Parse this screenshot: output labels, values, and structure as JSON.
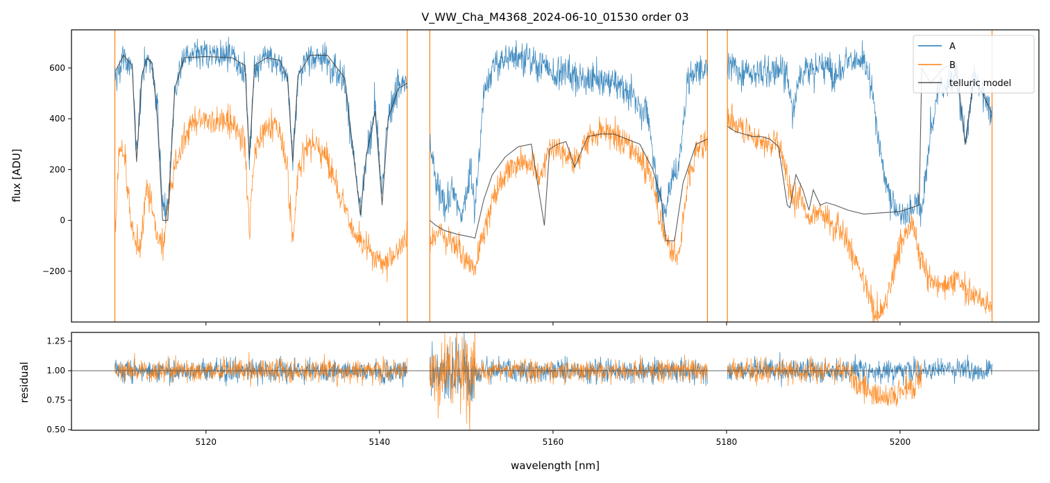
{
  "chart_data": {
    "type": "line",
    "title": "V_WW_Cha_M4368_2024-06-10_01530  order 03",
    "xlabel": "wavelength [nm]",
    "xlim": [
      5104.5,
      5216
    ],
    "x_ticks": [
      5120,
      5140,
      5160,
      5180,
      5200
    ],
    "top_panel": {
      "ylabel": "flux [ADU]",
      "ylim": [
        -400,
        750
      ],
      "y_ticks": [
        -200,
        0,
        200,
        400,
        600
      ],
      "segments": [
        {
          "x": [
            5109.5,
            5143.2
          ],
          "A_points": [
            [
              5109.6,
              560
            ],
            [
              5110.5,
              640
            ],
            [
              5111.5,
              600
            ],
            [
              5112.0,
              250
            ],
            [
              5112.6,
              560
            ],
            [
              5113.2,
              630
            ],
            [
              5113.8,
              610
            ],
            [
              5114.4,
              450
            ],
            [
              5115.0,
              60
            ],
            [
              5115.6,
              50
            ],
            [
              5116.4,
              500
            ],
            [
              5117.5,
              650
            ],
            [
              5120,
              650
            ],
            [
              5123,
              640
            ],
            [
              5124.5,
              600
            ],
            [
              5125.0,
              240
            ],
            [
              5125.6,
              600
            ],
            [
              5127,
              640
            ],
            [
              5128.5,
              620
            ],
            [
              5129.4,
              560
            ],
            [
              5130.0,
              240
            ],
            [
              5130.6,
              560
            ],
            [
              5132,
              640
            ],
            [
              5134,
              640
            ],
            [
              5136,
              550
            ],
            [
              5137.2,
              200
            ],
            [
              5137.8,
              30
            ],
            [
              5138.5,
              250
            ],
            [
              5139.5,
              460
            ],
            [
              5140.3,
              100
            ],
            [
              5141,
              420
            ],
            [
              5142.2,
              530
            ],
            [
              5143.2,
              540
            ]
          ],
          "B_points": [
            [
              5109.6,
              -20
            ],
            [
              5110.0,
              280
            ],
            [
              5110.6,
              260
            ],
            [
              5111.3,
              20
            ],
            [
              5111.8,
              -90
            ],
            [
              5112.5,
              -80
            ],
            [
              5113.2,
              140
            ],
            [
              5113.8,
              50
            ],
            [
              5114.5,
              -80
            ],
            [
              5115.0,
              -110
            ],
            [
              5116.0,
              150
            ],
            [
              5117.0,
              280
            ],
            [
              5118.5,
              380
            ],
            [
              5121,
              400
            ],
            [
              5123,
              390
            ],
            [
              5124.5,
              300
            ],
            [
              5125.0,
              -40
            ],
            [
              5125.6,
              280
            ],
            [
              5127,
              380
            ],
            [
              5128.5,
              350
            ],
            [
              5129.4,
              200
            ],
            [
              5130.0,
              -90
            ],
            [
              5130.6,
              200
            ],
            [
              5132,
              320
            ],
            [
              5134,
              240
            ],
            [
              5135.5,
              100
            ],
            [
              5137.0,
              -50
            ],
            [
              5138.0,
              -100
            ],
            [
              5139.5,
              -150
            ],
            [
              5140.5,
              -170
            ],
            [
              5142,
              -120
            ],
            [
              5143.2,
              -60
            ]
          ],
          "model_points": [
            [
              5109.6,
              590
            ],
            [
              5110.5,
              650
            ],
            [
              5111.5,
              610
            ],
            [
              5112.0,
              230
            ],
            [
              5112.6,
              570
            ],
            [
              5113.2,
              640
            ],
            [
              5113.8,
              620
            ],
            [
              5114.4,
              400
            ],
            [
              5115.0,
              0
            ],
            [
              5115.6,
              0
            ],
            [
              5116.4,
              520
            ],
            [
              5117.5,
              640
            ],
            [
              5120,
              645
            ],
            [
              5123,
              640
            ],
            [
              5124.5,
              610
            ],
            [
              5125.0,
              240
            ],
            [
              5125.6,
              610
            ],
            [
              5127,
              640
            ],
            [
              5128.5,
              630
            ],
            [
              5129.4,
              560
            ],
            [
              5130.0,
              230
            ],
            [
              5130.6,
              570
            ],
            [
              5132,
              650
            ],
            [
              5134,
              650
            ],
            [
              5136,
              560
            ],
            [
              5137.2,
              200
            ],
            [
              5137.8,
              20
            ],
            [
              5138.5,
              260
            ],
            [
              5139.5,
              430
            ],
            [
              5140.3,
              60
            ],
            [
              5141,
              400
            ],
            [
              5142.2,
              520
            ],
            [
              5143.2,
              540
            ]
          ]
        },
        {
          "x": [
            5145.8,
            5177.8
          ],
          "A_points": [
            [
              5145.8,
              300
            ],
            [
              5146.5,
              150
            ],
            [
              5147.5,
              60
            ],
            [
              5148.5,
              120
            ],
            [
              5149.5,
              20
            ],
            [
              5150.5,
              200
            ],
            [
              5151.0,
              20
            ],
            [
              5152,
              500
            ],
            [
              5153,
              600
            ],
            [
              5154.5,
              640
            ],
            [
              5156,
              650
            ],
            [
              5157.5,
              620
            ],
            [
              5159,
              610
            ],
            [
              5160,
              580
            ],
            [
              5161,
              600
            ],
            [
              5162,
              580
            ],
            [
              5163,
              560
            ],
            [
              5165,
              560
            ],
            [
              5167,
              540
            ],
            [
              5169,
              500
            ],
            [
              5171,
              400
            ],
            [
              5172,
              150
            ],
            [
              5172.8,
              20
            ],
            [
              5173.5,
              150
            ],
            [
              5174.5,
              200
            ],
            [
              5175.5,
              550
            ],
            [
              5176.5,
              580
            ],
            [
              5177.8,
              610
            ]
          ],
          "B_points": [
            [
              5145.8,
              -100
            ],
            [
              5147,
              -50
            ],
            [
              5148.5,
              -100
            ],
            [
              5150,
              -150
            ],
            [
              5151,
              -180
            ],
            [
              5152,
              -60
            ],
            [
              5153,
              80
            ],
            [
              5154.5,
              180
            ],
            [
              5156,
              240
            ],
            [
              5157.5,
              220
            ],
            [
              5158.5,
              170
            ],
            [
              5159.5,
              280
            ],
            [
              5160.5,
              280
            ],
            [
              5161.5,
              260
            ],
            [
              5162.5,
              220
            ],
            [
              5164,
              320
            ],
            [
              5165.5,
              340
            ],
            [
              5167,
              340
            ],
            [
              5168.5,
              300
            ],
            [
              5170,
              250
            ],
            [
              5171.5,
              150
            ],
            [
              5172.5,
              -20
            ],
            [
              5173.5,
              -110
            ],
            [
              5174.5,
              -140
            ],
            [
              5175.5,
              150
            ],
            [
              5176.5,
              280
            ],
            [
              5177.8,
              310
            ]
          ],
          "model_points": [
            [
              5145.8,
              0
            ],
            [
              5146.5,
              -20
            ],
            [
              5147.5,
              -40
            ],
            [
              5149,
              -55
            ],
            [
              5150.5,
              -65
            ],
            [
              5151.0,
              -70
            ],
            [
              5152,
              80
            ],
            [
              5153,
              180
            ],
            [
              5154.5,
              250
            ],
            [
              5156,
              290
            ],
            [
              5157.5,
              300
            ],
            [
              5159,
              -20
            ],
            [
              5159.6,
              280
            ],
            [
              5160.5,
              300
            ],
            [
              5161.5,
              310
            ],
            [
              5162.5,
              210
            ],
            [
              5164,
              330
            ],
            [
              5165.5,
              340
            ],
            [
              5167,
              340
            ],
            [
              5168.5,
              320
            ],
            [
              5170,
              300
            ],
            [
              5171.5,
              200
            ],
            [
              5172.5,
              80
            ],
            [
              5173,
              -80
            ],
            [
              5174,
              -80
            ],
            [
              5175,
              150
            ],
            [
              5176.5,
              300
            ],
            [
              5177.8,
              320
            ]
          ]
        },
        {
          "x": [
            5180.1,
            5210.6
          ],
          "A_points": [
            [
              5180.1,
              600
            ],
            [
              5182,
              590
            ],
            [
              5184,
              580
            ],
            [
              5186,
              590
            ],
            [
              5187.2,
              560
            ],
            [
              5187.6,
              420
            ],
            [
              5188.5,
              590
            ],
            [
              5190,
              600
            ],
            [
              5191.5,
              610
            ],
            [
              5192.5,
              560
            ],
            [
              5193.5,
              620
            ],
            [
              5195,
              630
            ],
            [
              5196,
              610
            ],
            [
              5197,
              450
            ],
            [
              5198,
              200
            ],
            [
              5199,
              80
            ],
            [
              5200,
              30
            ],
            [
              5200.8,
              20
            ],
            [
              5201.5,
              50
            ],
            [
              5202,
              80
            ],
            [
              5202.5,
              20
            ],
            [
              5203.5,
              350
            ],
            [
              5204.5,
              520
            ],
            [
              5205.5,
              550
            ],
            [
              5206.5,
              570
            ],
            [
              5207.5,
              300
            ],
            [
              5208.5,
              560
            ],
            [
              5209.5,
              500
            ],
            [
              5210.6,
              420
            ]
          ],
          "B_points": [
            [
              5180.1,
              400
            ],
            [
              5181.5,
              370
            ],
            [
              5183,
              330
            ],
            [
              5184.5,
              300
            ],
            [
              5186,
              320
            ],
            [
              5187.2,
              130
            ],
            [
              5187.8,
              70
            ],
            [
              5188.5,
              100
            ],
            [
              5189.5,
              0
            ],
            [
              5190.5,
              40
            ],
            [
              5191.5,
              10
            ],
            [
              5193,
              -20
            ],
            [
              5194.5,
              -120
            ],
            [
              5195.5,
              -220
            ],
            [
              5196.5,
              -300
            ],
            [
              5197.5,
              -380
            ],
            [
              5198.5,
              -320
            ],
            [
              5199.5,
              -150
            ],
            [
              5200.5,
              -60
            ],
            [
              5201.5,
              -20
            ],
            [
              5202.5,
              -160
            ],
            [
              5203.5,
              -240
            ],
            [
              5205,
              -260
            ],
            [
              5206.5,
              -230
            ],
            [
              5208,
              -280
            ],
            [
              5209.5,
              -310
            ],
            [
              5210.6,
              -330
            ]
          ],
          "model_points": [
            [
              5180.1,
              370
            ],
            [
              5181,
              350
            ],
            [
              5182,
              340
            ],
            [
              5183,
              330
            ],
            [
              5184,
              330
            ],
            [
              5185,
              320
            ],
            [
              5186,
              290
            ],
            [
              5187.0,
              60
            ],
            [
              5187.3,
              50
            ],
            [
              5188,
              180
            ],
            [
              5188.8,
              120
            ],
            [
              5189.5,
              40
            ],
            [
              5190,
              120
            ],
            [
              5190.8,
              60
            ],
            [
              5191.5,
              70
            ],
            [
              5192.5,
              60
            ],
            [
              5194,
              40
            ],
            [
              5195.8,
              25
            ],
            [
              5198,
              30
            ],
            [
              5200,
              35
            ],
            [
              5202.2,
              60
            ],
            [
              5202.5,
              600
            ],
            [
              5203.5,
              540
            ],
            [
              5205,
              600
            ],
            [
              5206.5,
              620
            ],
            [
              5207.5,
              300
            ],
            [
              5208.5,
              560
            ],
            [
              5209.5,
              500
            ],
            [
              5210.6,
              420
            ]
          ]
        }
      ]
    },
    "bottom_panel": {
      "ylabel": "residual",
      "ylim": [
        0.495,
        1.325
      ],
      "y_ticks": [
        0.5,
        0.75,
        1.0,
        1.25
      ],
      "y_tick_labels": [
        "0.50",
        "0.75",
        "1.00",
        "1.25"
      ],
      "reference_line": 1.0
    },
    "legend": {
      "position": "top-right",
      "entries": [
        {
          "label": "A",
          "color": "#1f77b4"
        },
        {
          "label": "B",
          "color": "#ff7f0e"
        },
        {
          "label": "telluric model",
          "color": "#333333"
        }
      ]
    },
    "series_colors": {
      "A": "#1f77b4",
      "B": "#ff7f0e",
      "model": "#333333"
    }
  }
}
